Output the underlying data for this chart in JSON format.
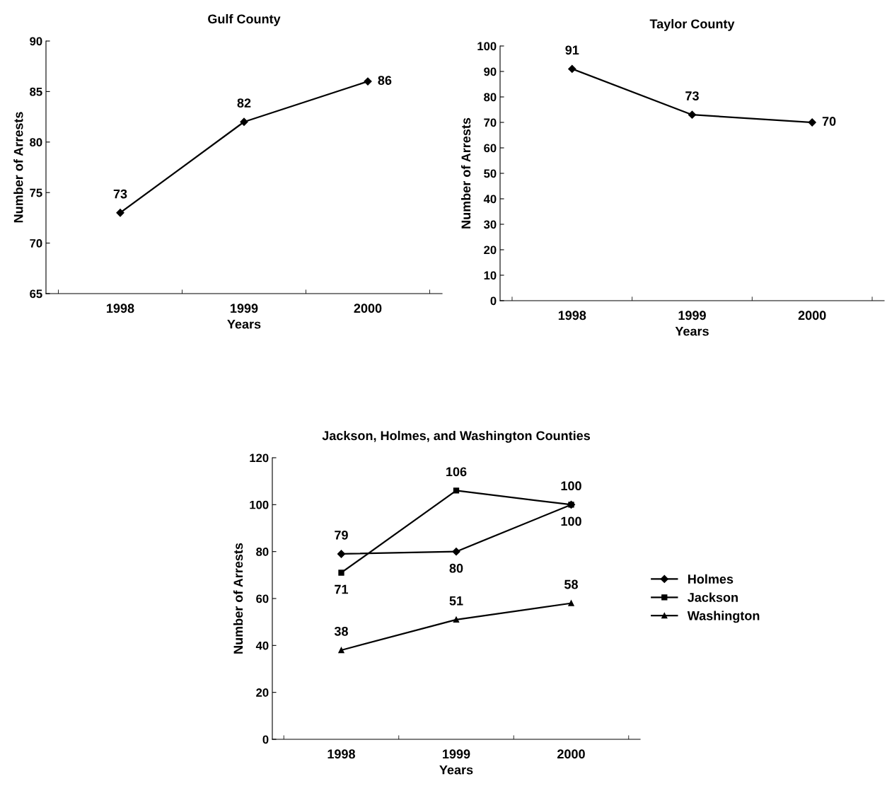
{
  "chart_data": [
    {
      "type": "line",
      "title": "Gulf County",
      "xlabel": "Years",
      "ylabel": "Number of Arrests",
      "categories": [
        "1998",
        "1999",
        "2000"
      ],
      "series": [
        {
          "color": "#000000",
          "values": [
            73,
            82,
            86
          ],
          "marker": "diamond"
        }
      ],
      "ylim": [
        65,
        90
      ],
      "yticks": [
        65,
        70,
        75,
        80,
        85,
        90
      ],
      "data_labels": true,
      "grid": false,
      "legend": false
    },
    {
      "type": "line",
      "title": "Taylor County",
      "xlabel": "Years",
      "ylabel": "Number of Arrests",
      "categories": [
        "1998",
        "1999",
        "2000"
      ],
      "series": [
        {
          "color": "#000000",
          "values": [
            91,
            73,
            70
          ],
          "marker": "diamond"
        }
      ],
      "ylim": [
        0,
        100
      ],
      "yticks": [
        0,
        10,
        20,
        30,
        40,
        50,
        60,
        70,
        80,
        90,
        100
      ],
      "data_labels": true,
      "grid": false,
      "legend": false
    },
    {
      "type": "line",
      "title": "Jackson, Holmes, and Washington Counties",
      "xlabel": "Years",
      "ylabel": "Number of Arrests",
      "categories": [
        "1998",
        "1999",
        "2000"
      ],
      "series": [
        {
          "name": "Holmes",
          "color": "#000000",
          "values": [
            79,
            80,
            100
          ],
          "marker": "diamond"
        },
        {
          "name": "Jackson",
          "color": "#000000",
          "values": [
            71,
            106,
            100
          ],
          "marker": "square"
        },
        {
          "name": "Washington",
          "color": "#000000",
          "values": [
            38,
            51,
            58
          ],
          "marker": "triangle"
        }
      ],
      "ylim": [
        0,
        120
      ],
      "yticks": [
        0,
        20,
        40,
        60,
        80,
        100,
        120
      ],
      "data_labels": true,
      "grid": false,
      "legend": "right"
    }
  ]
}
